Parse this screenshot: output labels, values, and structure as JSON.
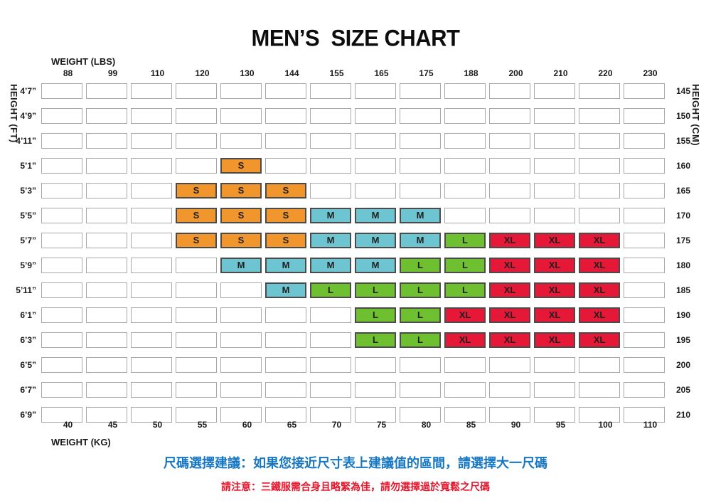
{
  "title": "MEN’S  SIZE CHART",
  "axes": {
    "top_label": "WEIGHT (LBS)",
    "bottom_label": "WEIGHT (KG)",
    "left_label": "HEIGHT (FT)",
    "right_label": "HEIGHT (CM)"
  },
  "chart_data": {
    "type": "heatmap",
    "title": "MEN’S SIZE CHART",
    "x_axis_top": {
      "label": "WEIGHT (LBS)",
      "ticks": [
        "88",
        "99",
        "110",
        "120",
        "130",
        "144",
        "155",
        "165",
        "175",
        "188",
        "200",
        "210",
        "220",
        "230"
      ]
    },
    "x_axis_bottom": {
      "label": "WEIGHT (KG)",
      "ticks": [
        "40",
        "45",
        "50",
        "55",
        "60",
        "65",
        "70",
        "75",
        "80",
        "85",
        "90",
        "95",
        "100",
        "110"
      ]
    },
    "y_axis_left": {
      "label": "HEIGHT (FT)",
      "ticks": [
        "4’7”",
        "4’9”",
        "4’11”",
        "5’1”",
        "5’3”",
        "5’5”",
        "5’7”",
        "5’9”",
        "5’11”",
        "6’1”",
        "6’3”",
        "6’5”",
        "6’7”",
        "6’9”"
      ]
    },
    "y_axis_right": {
      "label": "HEIGHT (CM)",
      "ticks": [
        "145",
        "150",
        "155",
        "160",
        "165",
        "170",
        "175",
        "180",
        "185",
        "190",
        "195",
        "200",
        "205",
        "210"
      ]
    },
    "cells": [
      [
        "",
        "",
        "",
        "",
        "",
        "",
        "",
        "",
        "",
        "",
        "",
        "",
        "",
        ""
      ],
      [
        "",
        "",
        "",
        "",
        "",
        "",
        "",
        "",
        "",
        "",
        "",
        "",
        "",
        ""
      ],
      [
        "",
        "",
        "",
        "",
        "",
        "",
        "",
        "",
        "",
        "",
        "",
        "",
        "",
        ""
      ],
      [
        "",
        "",
        "",
        "",
        "S",
        "",
        "",
        "",
        "",
        "",
        "",
        "",
        "",
        ""
      ],
      [
        "",
        "",
        "",
        "S",
        "S",
        "S",
        "",
        "",
        "",
        "",
        "",
        "",
        "",
        ""
      ],
      [
        "",
        "",
        "",
        "S",
        "S",
        "S",
        "M",
        "M",
        "M",
        "",
        "",
        "",
        "",
        ""
      ],
      [
        "",
        "",
        "",
        "S",
        "S",
        "S",
        "M",
        "M",
        "M",
        "L",
        "XL",
        "XL",
        "XL",
        ""
      ],
      [
        "",
        "",
        "",
        "",
        "M",
        "M",
        "M",
        "M",
        "L",
        "L",
        "XL",
        "XL",
        "XL",
        ""
      ],
      [
        "",
        "",
        "",
        "",
        "",
        "M",
        "L",
        "L",
        "L",
        "L",
        "XL",
        "XL",
        "XL",
        ""
      ],
      [
        "",
        "",
        "",
        "",
        "",
        "",
        "",
        "L",
        "L",
        "XL",
        "XL",
        "XL",
        "XL",
        ""
      ],
      [
        "",
        "",
        "",
        "",
        "",
        "",
        "",
        "L",
        "L",
        "XL",
        "XL",
        "XL",
        "XL",
        ""
      ],
      [
        "",
        "",
        "",
        "",
        "",
        "",
        "",
        "",
        "",
        "",
        "",
        "",
        "",
        ""
      ],
      [
        "",
        "",
        "",
        "",
        "",
        "",
        "",
        "",
        "",
        "",
        "",
        "",
        "",
        ""
      ],
      [
        "",
        "",
        "",
        "",
        "",
        "",
        "",
        "",
        "",
        "",
        "",
        "",
        "",
        ""
      ]
    ],
    "size_colors": {
      "S": "#F0962D",
      "M": "#6EC5D2",
      "L": "#6EC031",
      "XL": "#E51937"
    },
    "grid": "cell-boxes",
    "legend": "none"
  },
  "notes": {
    "advice": "尺碼選擇建議：如果您接近尺寸表上建議值的區間，請選擇大一尺碼",
    "advice_color": "#1777C2",
    "warning": "請注意：三鐵服需合身且略緊為佳，請勿選擇過於寬鬆之尺碼",
    "warning_color": "#E5182E"
  }
}
